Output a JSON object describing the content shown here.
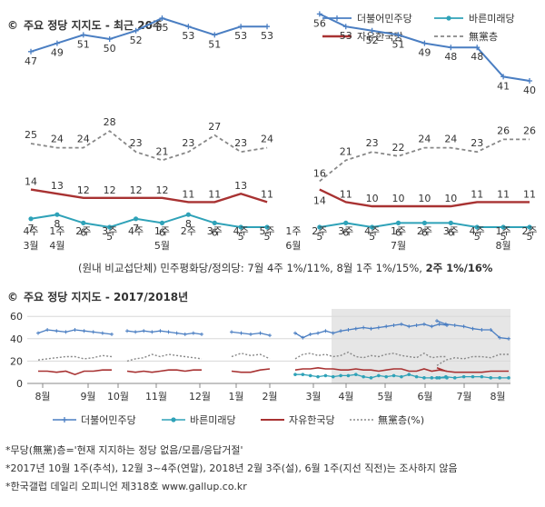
{
  "chart_data": [
    {
      "type": "line",
      "title": "주요 정당 지지도 - 최근 20주",
      "title_prefix": "©",
      "x_major": [
        "4주",
        "1주",
        "2주",
        "3주",
        "4주",
        "1주",
        "2주",
        "3주",
        "4주",
        "5주",
        "1주",
        "2주",
        "3주",
        "4주",
        "1주",
        "2주",
        "3주",
        "4주",
        "1주",
        "2주"
      ],
      "x_months": {
        "0": "3월",
        "1": "4월",
        "5": "5월",
        "10": "6월",
        "14": "7월",
        "18": "8월"
      },
      "series": [
        {
          "name": "더불어민주당",
          "color": "#4a7ec2",
          "marker": "plus",
          "values": [
            47,
            49,
            51,
            50,
            52,
            55,
            53,
            51,
            53,
            53,
            null,
            56,
            53,
            52,
            51,
            49,
            48,
            48,
            41,
            40
          ]
        },
        {
          "name": "바른미래당",
          "color": "#2fa2b8",
          "marker": "circle",
          "values": [
            7,
            8,
            6,
            5,
            7,
            6,
            8,
            6,
            5,
            5,
            null,
            5,
            6,
            5,
            6,
            6,
            6,
            5,
            5,
            5
          ]
        },
        {
          "name": "자유한국당",
          "color": "#a83232",
          "marker": "none",
          "values": [
            14,
            13,
            12,
            12,
            12,
            12,
            11,
            11,
            13,
            11,
            null,
            14,
            11,
            10,
            10,
            10,
            10,
            11,
            11,
            11
          ]
        },
        {
          "name": "無黨층",
          "color": "#888888",
          "marker": "dash",
          "values": [
            25,
            24,
            24,
            28,
            23,
            21,
            23,
            27,
            23,
            24,
            null,
            16,
            21,
            23,
            22,
            24,
            24,
            23,
            26,
            26
          ]
        }
      ],
      "ylim": [
        0,
        60
      ],
      "subnote": {
        "text": "(원내 비교섭단체) 민주평화당/정의당: 7월 4주 1%/11%, 8월 1주 1%/15%,",
        "bold": "2주 1%/16%"
      }
    },
    {
      "type": "line",
      "title": "주요 정당 지지도 - 2017/2018년",
      "title_prefix": "©",
      "x_ticks": [
        "8월",
        "9월",
        "10월",
        "11월",
        "12월",
        "1월",
        "2월",
        "3월",
        "4월",
        "5월",
        "6월",
        "7월",
        "8월"
      ],
      "y_ticks": [
        0,
        20,
        40,
        60
      ],
      "ylim": [
        0,
        60
      ],
      "grid": "horizontal",
      "legend": "bottom",
      "series": [
        {
          "name": "더불어민주당",
          "color": "#4a7ec2",
          "marker": "plus",
          "segments": [
            [
              45,
              48,
              47,
              46,
              48,
              47,
              46,
              45,
              44
            ],
            [
              47,
              46,
              47,
              46,
              47,
              46,
              45,
              44,
              45,
              44
            ],
            [
              46,
              45,
              44,
              45,
              43
            ],
            [
              45,
              41,
              44,
              45,
              47,
              45,
              47,
              48,
              49,
              50,
              49,
              50,
              51,
              52,
              53,
              51,
              52,
              53,
              51,
              53,
              52
            ],
            [
              56,
              53,
              52,
              51,
              49,
              48,
              48,
              41,
              40
            ]
          ]
        },
        {
          "name": "바른미래당",
          "color": "#2fa2b8",
          "marker": "circle",
          "segments": [
            [],
            [],
            [],
            [
              8,
              8,
              7,
              6,
              7,
              6,
              7,
              7,
              8,
              6,
              5,
              7,
              6,
              7,
              6,
              8,
              6,
              5,
              5,
              5,
              5
            ],
            [
              5,
              6,
              5,
              6,
              6,
              6,
              5,
              5,
              5
            ]
          ]
        },
        {
          "name": "자유한국당",
          "color": "#a83232",
          "marker": "none",
          "segments": [
            [
              11,
              11,
              10,
              11,
              8,
              11,
              11,
              12,
              12
            ],
            [
              11,
              10,
              11,
              10,
              11,
              12,
              12,
              11,
              12,
              12
            ],
            [
              11,
              10,
              10,
              12,
              13
            ],
            [
              12,
              13,
              13,
              14,
              13,
              13,
              12,
              12,
              13,
              12,
              12,
              11,
              12,
              13,
              13,
              11,
              11,
              13,
              11,
              12,
              11
            ],
            [
              14,
              11,
              10,
              10,
              10,
              10,
              11,
              11,
              11
            ]
          ]
        },
        {
          "name": "無黨층",
          "color": "#888888",
          "marker": "dash",
          "segments": [
            [
              21,
              22,
              23,
              24,
              24,
              22,
              23,
              25,
              24
            ],
            [
              20,
              22,
              23,
              26,
              24,
              26,
              25,
              24,
              23,
              22
            ],
            [
              24,
              27,
              25,
              26,
              22
            ],
            [
              22,
              26,
              27,
              25,
              26,
              24,
              25,
              28,
              24,
              23,
              25,
              24,
              26,
              27,
              25,
              24,
              23,
              27,
              23,
              24,
              24
            ],
            [
              16,
              21,
              23,
              22,
              24,
              24,
              23,
              26,
              26
            ]
          ]
        }
      ]
    }
  ],
  "footnotes": [
    "*무당(無黨)층='현재 지지하는 정당 없음/모름/응답거절'",
    "*2017년 10월 1주(추석), 12월 3~4주(연말), 2018년 2월 3주(설), 6월 1주(지선 직전)는 조사하지 않음",
    "*한국갤럽 데일리 오피니언 제318호 www.gallup.co.kr"
  ]
}
